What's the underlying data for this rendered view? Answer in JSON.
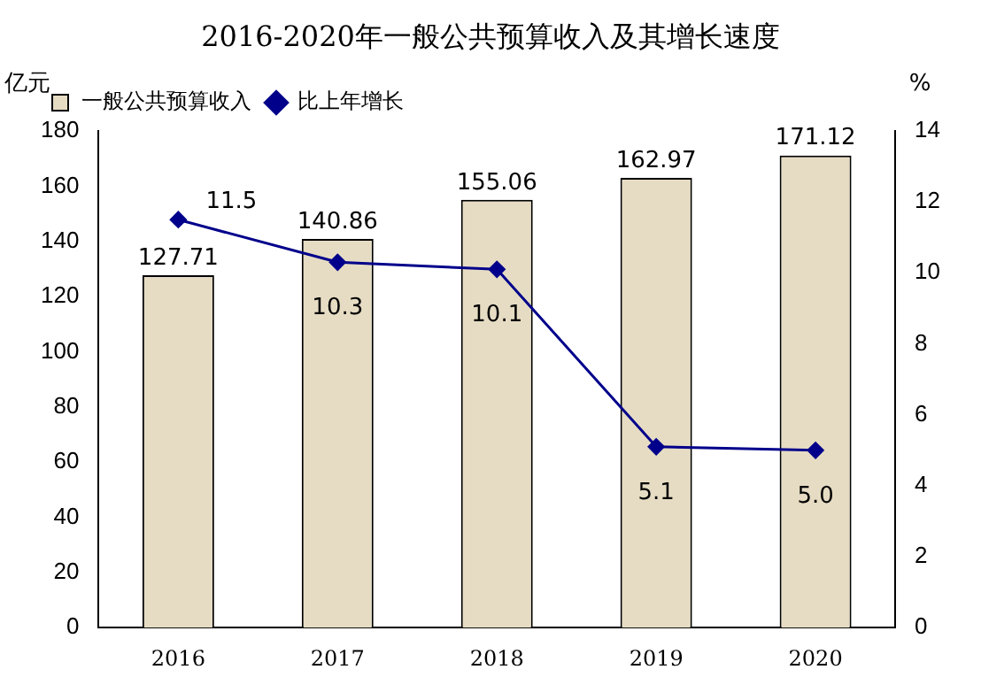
{
  "chart_data": {
    "type": "bar",
    "title": "2016-2020年一般公共预算收入及其增长速度",
    "ylabel": "亿元",
    "y2label": "%",
    "categories": [
      "2016",
      "2017",
      "2018",
      "2019",
      "2020"
    ],
    "series": [
      {
        "name": "一般公共预算收入",
        "color": "#e6dcc3",
        "values": [
          127.71,
          140.86,
          155.06,
          162.97,
          171.12
        ],
        "value_labels": [
          "127.71",
          "140.86",
          "155.06",
          "162.97",
          "171.12"
        ]
      },
      {
        "name": "比上年增长",
        "type": "line",
        "axis": "y2",
        "color": "#00008b",
        "values": [
          11.5,
          10.3,
          10.1,
          5.1,
          5.0
        ],
        "value_labels": [
          "11.5",
          "10.3",
          "10.1",
          "5.1",
          "5.0"
        ]
      }
    ],
    "ylim": [
      0,
      180
    ],
    "yticks": [
      0,
      20,
      40,
      60,
      80,
      100,
      120,
      140,
      160,
      180
    ],
    "y2lim": [
      0,
      14
    ],
    "y2ticks": [
      0,
      2,
      4,
      6,
      8,
      10,
      12,
      14
    ],
    "marker": "diamond",
    "legend": "top left",
    "grid": false
  }
}
